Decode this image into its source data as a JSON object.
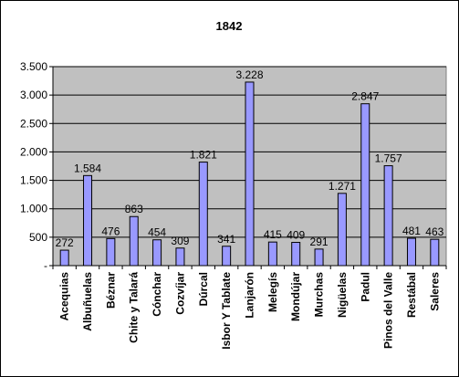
{
  "chart_data": {
    "type": "bar",
    "title": "1842",
    "categories": [
      "Acequias",
      "Albuñuelas",
      "Béznar",
      "Chite y Talará",
      "Cónchar",
      "Cozvíjar",
      "Dúrcal",
      "Isbor Y Tablate",
      "Lanjarón",
      "Melegís",
      "Mondújar",
      "Murchas",
      "Nigüelas",
      "Padul",
      "Pinos del Valle",
      "Restábal",
      "Saleres"
    ],
    "values": [
      272,
      1584,
      476,
      863,
      454,
      309,
      1821,
      341,
      3228,
      415,
      409,
      291,
      1271,
      2847,
      1757,
      481,
      463
    ],
    "data_labels": [
      "272",
      "1.584",
      "476",
      "863",
      "454",
      "309",
      "1.821",
      "341",
      "3.228",
      "415",
      "409",
      "291",
      "1.271",
      "2.847",
      "1.757",
      "481",
      "463"
    ],
    "ylim": [
      0,
      3500
    ],
    "yticks": [
      0,
      500,
      1000,
      1500,
      2000,
      2500,
      3000,
      3500
    ],
    "ytick_labels": [
      "-",
      "500",
      "1.000",
      "1.500",
      "2.000",
      "2.500",
      "3.000",
      "3.500"
    ],
    "xlabel": "",
    "ylabel": "",
    "grid": true,
    "legend": "none",
    "colors": {
      "plot_background": "#c0c0c0",
      "bar_fill": "#9999ff",
      "bar_stroke": "#000000",
      "gridline": "#000000"
    }
  }
}
